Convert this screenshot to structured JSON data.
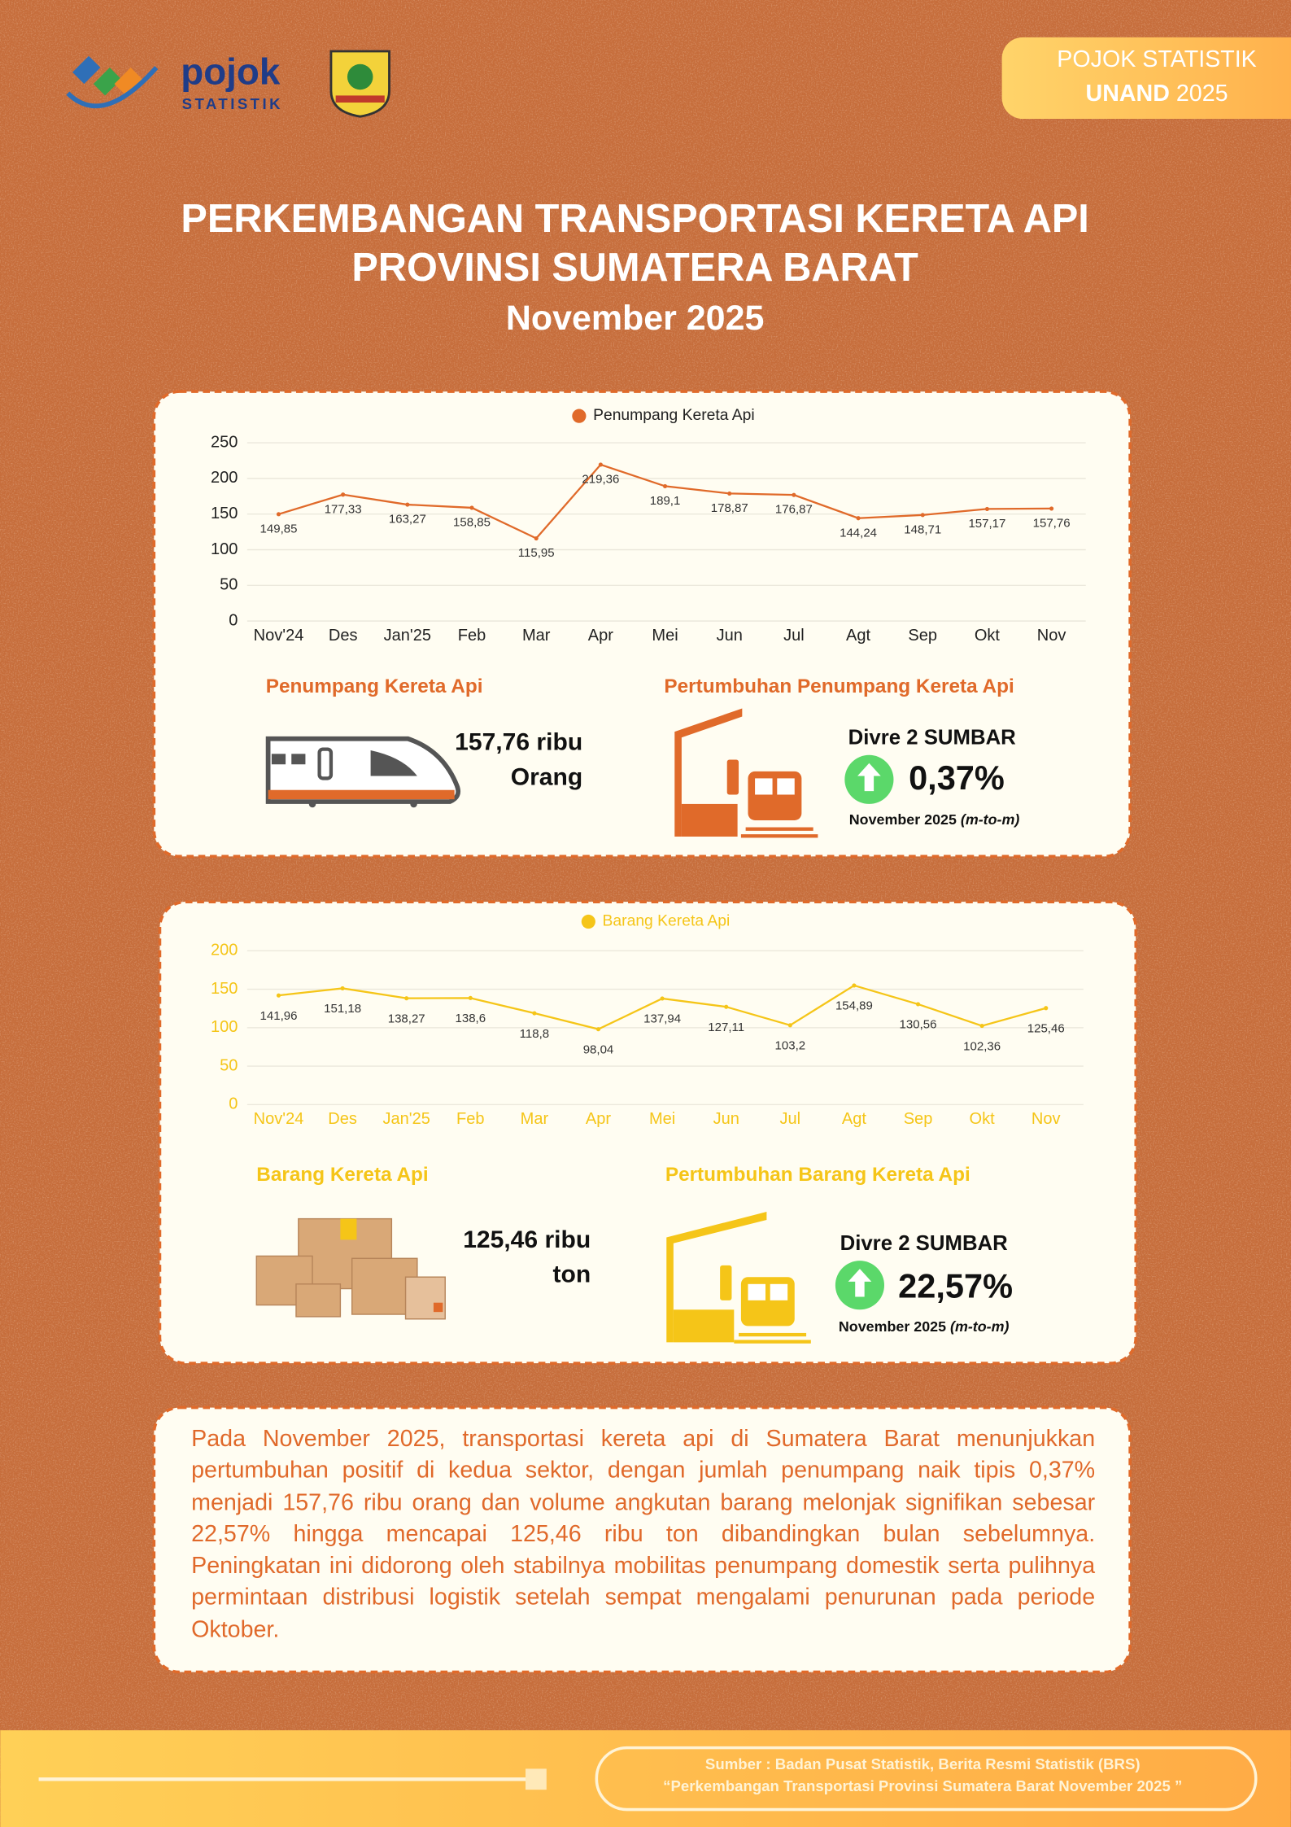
{
  "header": {
    "logo_text": "pojok",
    "logo_subtext": "STATISTIK",
    "badge_line1": "POJOK STATISTIK",
    "badge_bold": "UNAND",
    "badge_year": "2025",
    "title_line1": "PERKEMBANGAN TRANSPORTASI KERETA API",
    "title_line2": "PROVINSI SUMATERA BARAT",
    "title_line3": "November 2025"
  },
  "chart_data": [
    {
      "type": "line",
      "categories": [
        "Nov'24",
        "Des",
        "Jan'25",
        "Feb",
        "Mar",
        "Apr",
        "Mei",
        "Jun",
        "Jul",
        "Agt",
        "Sep",
        "Okt",
        "Nov"
      ],
      "series": [
        {
          "name": "Penumpang Kereta Api",
          "color": "#e06a2a",
          "values": [
            149.85,
            177.33,
            163.27,
            158.85,
            115.95,
            219.36,
            189.1,
            178.87,
            176.87,
            144.24,
            148.71,
            157.17,
            157.76
          ],
          "value_labels": [
            "149,85",
            "177,33",
            "163,27",
            "158,85",
            "115,95",
            "219,36",
            "189,1",
            "178,87",
            "176,87",
            "144,24",
            "148,71",
            "157,17",
            "157,76"
          ]
        }
      ],
      "ylim": [
        0,
        250
      ],
      "yticks": [
        0,
        50,
        100,
        150,
        200,
        250
      ],
      "grid": true,
      "legend": "top"
    },
    {
      "type": "line",
      "categories": [
        "Nov'24",
        "Des",
        "Jan'25",
        "Feb",
        "Mar",
        "Apr",
        "Mei",
        "Jun",
        "Jul",
        "Agt",
        "Sep",
        "Okt",
        "Nov"
      ],
      "series": [
        {
          "name": "Barang Kereta Api",
          "color": "#f5c518",
          "values": [
            141.96,
            151.18,
            138.27,
            138.6,
            118.8,
            98.04,
            137.94,
            127.11,
            103.2,
            154.89,
            130.56,
            102.36,
            125.46
          ],
          "value_labels": [
            "141,96",
            "151,18",
            "138,27",
            "138,6",
            "118,8",
            "98,04",
            "137,94",
            "127,11",
            "103,2",
            "154,89",
            "130,56",
            "102,36",
            "125,46"
          ]
        }
      ],
      "ylim": [
        0,
        200
      ],
      "yticks": [
        0,
        50,
        100,
        150,
        200
      ],
      "grid": true,
      "legend": "top"
    }
  ],
  "passenger": {
    "heading": "Penumpang Kereta Api",
    "value_line1": "157,76 ribu",
    "value_line2": "Orang",
    "growth_heading": "Pertumbuhan Penumpang Kereta Api",
    "region": "Divre 2 SUMBAR",
    "growth": "0,37%",
    "period": "November 2025",
    "period_note": "(m-to-m)"
  },
  "freight": {
    "heading": "Barang Kereta Api",
    "value_line1": "125,46 ribu",
    "value_line2": "ton",
    "growth_heading": "Pertumbuhan Barang Kereta Api",
    "region": "Divre 2 SUMBAR",
    "growth": "22,57%",
    "period": "November 2025",
    "period_note": "(m-to-m)"
  },
  "summary": {
    "text": "Pada November 2025, transportasi kereta api di Sumatera Barat menunjukkan pertumbuhan positif di kedua sektor, dengan jumlah penumpang naik tipis 0,37% menjadi 157,76 ribu orang dan volume angkutan barang melonjak signifikan sebesar 22,57% hingga mencapai 125,46 ribu ton dibandingkan bulan sebelumnya. Peningkatan ini didorong oleh stabilnya mobilitas penumpang domestik serta pulihnya permintaan distribusi logistik setelah sempat mengalami penurunan pada periode Oktober."
  },
  "footer": {
    "source_line1": "Sumber : Badan Pusat Statistik, Berita Resmi Statistik (BRS)",
    "source_line2": "“Perkembangan Transportasi Provinsi Sumatera Barat November 2025 ”"
  }
}
